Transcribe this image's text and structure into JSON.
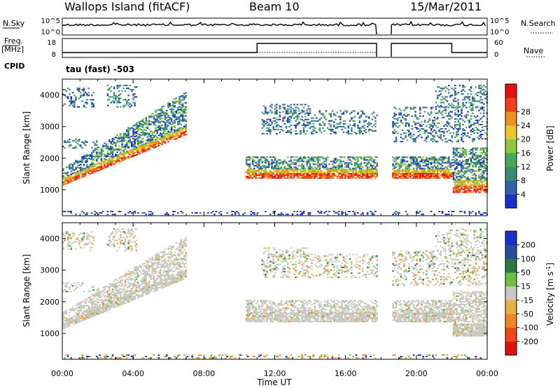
{
  "header": {
    "station": "Wallops Island (fitACF)",
    "beam": "Beam 10",
    "date": "15/Mar/2011"
  },
  "strips": {
    "nsky_label": "N.Sky",
    "nsky_ticks": [
      "10^5",
      "10^0"
    ],
    "nsearch_label": "N.Search",
    "nsearch_ticks": [
      "10^5",
      "10^0"
    ],
    "freq_label": "Freq.",
    "freq_unit": "[MHz]",
    "freq_ticks": [
      "18",
      "8"
    ],
    "nave_label": "Nave",
    "nave_ticks": [
      "60",
      "0"
    ],
    "cpid_label": "CPID",
    "cpid_value": "tau (fast) -503"
  },
  "colors": {
    "power_scale": [
      "#1e2ec8",
      "#2f62a8",
      "#3a8a78",
      "#48a858",
      "#8cc83c",
      "#e8c828",
      "#f09020",
      "#f04018",
      "#e81010"
    ],
    "velocity_scale": [
      "#1e2ec8",
      "#284c98",
      "#2a7840",
      "#6ac040",
      "#c8c8c0",
      "#e8b040",
      "#f08820",
      "#f04818",
      "#e01010"
    ]
  },
  "chart_data": [
    {
      "type": "heatmap",
      "quantity": "Power",
      "ylabel": "Slant Range [km]",
      "ylim": [
        180,
        4500
      ],
      "yticks": [
        1000,
        2000,
        3000,
        4000
      ],
      "xlim_hours": [
        0,
        24
      ],
      "colorbar_label": "Power [dB]",
      "colorbar_ticks": [
        "4",
        "8",
        "12",
        "16",
        "20",
        "24",
        "28"
      ],
      "data_gaps_ut": [
        [
          "17:45",
          "18:35"
        ]
      ]
    },
    {
      "type": "heatmap",
      "quantity": "Velocity",
      "ylabel": "Slant Range [km]",
      "ylim": [
        180,
        4500
      ],
      "yticks": [
        1000,
        2000,
        3000,
        4000
      ],
      "xlabel": "Time UT",
      "xticks": [
        "00:00",
        "04:00",
        "08:00",
        "12:00",
        "16:00",
        "20:00",
        "00:00"
      ],
      "colorbar_label": "Velocity [m s",
      "colorbar_label_sup": "-1",
      "colorbar_label_end": "]",
      "colorbar_ticks": [
        "200",
        "100",
        "50",
        "15",
        "-15",
        "-50",
        "-100",
        "-200"
      ],
      "data_gaps_ut": [
        [
          "17:45",
          "18:35"
        ]
      ]
    }
  ]
}
